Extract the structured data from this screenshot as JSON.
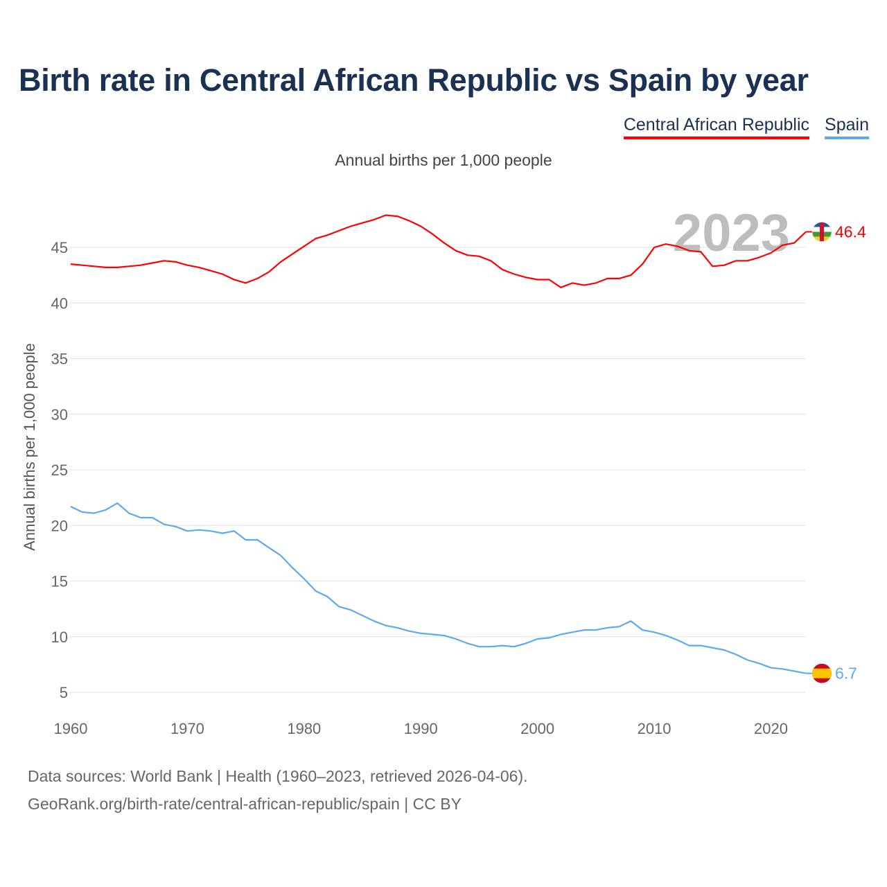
{
  "chart_data": {
    "type": "line",
    "title": "Birth rate in Central African Republic vs Spain by year",
    "subtitle": "Annual births per 1,000 people",
    "ylabel": "Annual births per 1,000 people",
    "xlabel": "",
    "xlim": [
      1960,
      2023
    ],
    "ylim": [
      5,
      48
    ],
    "x_ticks": [
      1960,
      1970,
      1980,
      1990,
      2000,
      2010,
      2020
    ],
    "y_ticks": [
      5,
      10,
      15,
      20,
      25,
      30,
      35,
      40,
      45
    ],
    "grid": true,
    "legend_position": "top-right",
    "year_watermark": "2023",
    "x": [
      1960,
      1961,
      1962,
      1963,
      1964,
      1965,
      1966,
      1967,
      1968,
      1969,
      1970,
      1971,
      1972,
      1973,
      1974,
      1975,
      1976,
      1977,
      1978,
      1979,
      1980,
      1981,
      1982,
      1983,
      1984,
      1985,
      1986,
      1987,
      1988,
      1989,
      1990,
      1991,
      1992,
      1993,
      1994,
      1995,
      1996,
      1997,
      1998,
      1999,
      2000,
      2001,
      2002,
      2003,
      2004,
      2005,
      2006,
      2007,
      2008,
      2009,
      2010,
      2011,
      2012,
      2013,
      2014,
      2015,
      2016,
      2017,
      2018,
      2019,
      2020,
      2021,
      2022,
      2023
    ],
    "series": [
      {
        "name": "Central African Republic",
        "color": "#ff0000",
        "end_label": "46.4",
        "values": [
          43.5,
          43.4,
          43.3,
          43.2,
          43.2,
          43.3,
          43.4,
          43.6,
          43.8,
          43.7,
          43.4,
          43.2,
          42.9,
          42.6,
          42.1,
          41.8,
          42.2,
          42.8,
          43.7,
          44.4,
          45.1,
          45.8,
          46.1,
          46.5,
          46.9,
          47.2,
          47.5,
          47.9,
          47.8,
          47.4,
          46.9,
          46.2,
          45.4,
          44.7,
          44.3,
          44.2,
          43.8,
          43.0,
          42.6,
          42.3,
          42.1,
          42.1,
          41.4,
          41.8,
          41.6,
          41.8,
          42.2,
          42.2,
          42.5,
          43.5,
          45.0,
          45.3,
          45.1,
          44.7,
          44.6,
          43.3,
          43.4,
          43.8,
          43.8,
          44.1,
          44.5,
          45.2,
          45.4,
          46.4
        ]
      },
      {
        "name": "Spain",
        "color": "#5fa8ee",
        "end_label": "6.7",
        "values": [
          21.7,
          21.2,
          21.1,
          21.4,
          22.0,
          21.1,
          20.7,
          20.7,
          20.1,
          19.9,
          19.5,
          19.6,
          19.5,
          19.3,
          19.5,
          18.7,
          18.7,
          18.0,
          17.3,
          16.2,
          15.2,
          14.1,
          13.6,
          12.7,
          12.4,
          11.9,
          11.4,
          11.0,
          10.8,
          10.5,
          10.3,
          10.2,
          10.1,
          9.8,
          9.4,
          9.1,
          9.1,
          9.2,
          9.1,
          9.4,
          9.8,
          9.9,
          10.2,
          10.4,
          10.6,
          10.6,
          10.8,
          10.9,
          11.4,
          10.6,
          10.4,
          10.1,
          9.7,
          9.2,
          9.2,
          9.0,
          8.8,
          8.4,
          7.9,
          7.6,
          7.2,
          7.1,
          6.9,
          6.7
        ]
      }
    ]
  },
  "footer": {
    "line1": "Data sources: World Bank | Health (1960–2023, retrieved 2026-04-06).",
    "line2": "GeoRank.org/birth-rate/central-african-republic/spain | CC BY"
  }
}
